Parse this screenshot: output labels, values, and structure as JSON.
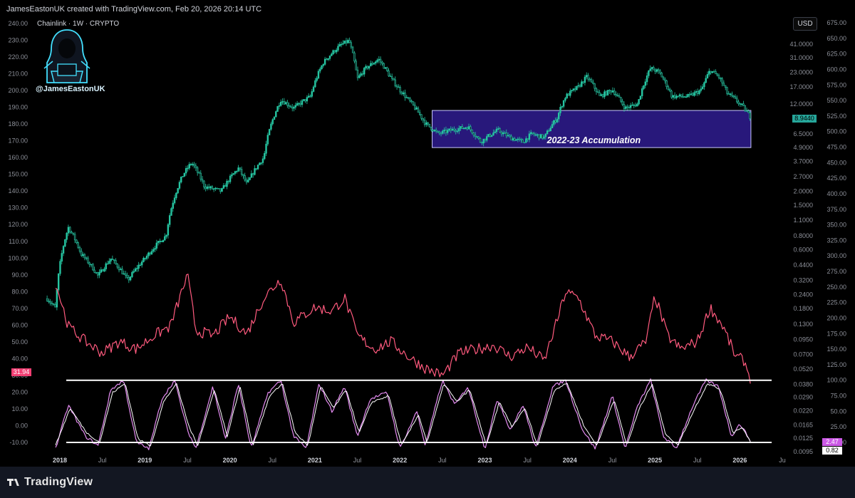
{
  "header": {
    "attribution": "JamesEastonUK created with TradingView.com, Feb 20, 2026 20:14 UTC"
  },
  "symbol": {
    "title": "Chainlink · 1W · CRYPTO"
  },
  "branding": {
    "handle": "@JamesEastonUK",
    "logo_text": "TradingView"
  },
  "currency_button": "USD",
  "colors": {
    "candle": "#26c6a2",
    "rsi": "#ff5a7e",
    "stoch_k": "#e58cf2",
    "stoch_d": "#ffffff",
    "zone_fill": "#2b1a86",
    "zone_border": "#c8c8ff",
    "price_badge": "#26a69a",
    "rsi_badge": "#f23f73",
    "stoch_badge": "#cc59e6"
  },
  "chart_data": {
    "type": "line",
    "x_axis": {
      "tick_labels": [
        "2018",
        "Jul",
        "2019",
        "Jul",
        "2020",
        "Jul",
        "2021",
        "Jul",
        "2022",
        "Jul",
        "2023",
        "Jul",
        "2024",
        "Jul",
        "2025",
        "Jul",
        "2026",
        "Ju"
      ]
    },
    "left_axis": {
      "tick_labels": [
        "240.00",
        "230.00",
        "220.00",
        "210.00",
        "200.00",
        "190.00",
        "180.00",
        "170.00",
        "160.00",
        "150.00",
        "140.00",
        "130.00",
        "120.00",
        "110.00",
        "100.00",
        "90.00",
        "80.00",
        "70.00",
        "60.00",
        "50.00",
        "40.00",
        "30.00",
        "20.00",
        "10.00",
        "0.00",
        "-10.00"
      ]
    },
    "price_axis": {
      "scale": "log",
      "tick_labels": [
        "41.0000",
        "31.0000",
        "23.0000",
        "17.0000",
        "12.0000",
        "8.9440",
        "6.5000",
        "4.9000",
        "3.7000",
        "2.7000",
        "2.0000",
        "1.5000",
        "1.1000",
        "0.8000",
        "0.6000",
        "0.4400",
        "0.3200",
        "0.2400",
        "0.1800",
        "0.1300",
        "0.0950",
        "0.0700",
        "0.0520",
        "0.0380",
        "0.0290",
        "0.0220",
        "0.0165",
        "0.0125",
        "0.0095"
      ]
    },
    "right_axis": {
      "tick_labels": [
        "675.00",
        "650.00",
        "625.00",
        "600.00",
        "575.00",
        "550.00",
        "525.00",
        "500.00",
        "475.00",
        "450.00",
        "425.00",
        "400.00",
        "375.00",
        "350.00",
        "325.00",
        "300.00",
        "275.00",
        "250.00",
        "225.00",
        "200.00",
        "175.00",
        "150.00",
        "125.00",
        "100.00",
        "75.00",
        "50.00",
        "25.00",
        "0.00"
      ]
    },
    "series": [
      {
        "type": "candlestick",
        "points": [
          [
            2017.85,
            0.22
          ],
          [
            2017.95,
            0.18
          ],
          [
            2018.1,
            0.95
          ],
          [
            2018.25,
            0.55
          ],
          [
            2018.45,
            0.35
          ],
          [
            2018.6,
            0.5
          ],
          [
            2018.8,
            0.32
          ],
          [
            2019.0,
            0.5
          ],
          [
            2019.25,
            0.8
          ],
          [
            2019.45,
            2.8
          ],
          [
            2019.55,
            3.6
          ],
          [
            2019.7,
            2.2
          ],
          [
            2019.9,
            2.0
          ],
          [
            2020.1,
            3.2
          ],
          [
            2020.2,
            2.3
          ],
          [
            2020.4,
            4.0
          ],
          [
            2020.6,
            13.0
          ],
          [
            2020.75,
            11.0
          ],
          [
            2020.95,
            14.0
          ],
          [
            2021.1,
            28.0
          ],
          [
            2021.3,
            40.0
          ],
          [
            2021.4,
            44.0
          ],
          [
            2021.5,
            20.0
          ],
          [
            2021.6,
            25.0
          ],
          [
            2021.75,
            30.0
          ],
          [
            2021.9,
            20.0
          ],
          [
            2022.0,
            16.0
          ],
          [
            2022.1,
            13.0
          ],
          [
            2022.3,
            8.0
          ],
          [
            2022.45,
            6.5
          ],
          [
            2022.6,
            7.0
          ],
          [
            2022.8,
            7.5
          ],
          [
            2022.95,
            5.5
          ],
          [
            2023.15,
            7.0
          ],
          [
            2023.3,
            6.0
          ],
          [
            2023.45,
            5.5
          ],
          [
            2023.55,
            6.5
          ],
          [
            2023.7,
            6.0
          ],
          [
            2023.85,
            9.0
          ],
          [
            2023.95,
            14.0
          ],
          [
            2024.1,
            17.0
          ],
          [
            2024.2,
            21.0
          ],
          [
            2024.35,
            14.0
          ],
          [
            2024.5,
            16.0
          ],
          [
            2024.65,
            11.0
          ],
          [
            2024.8,
            12.0
          ],
          [
            2024.95,
            25.0
          ],
          [
            2025.05,
            23.0
          ],
          [
            2025.2,
            14.0
          ],
          [
            2025.4,
            14.0
          ],
          [
            2025.55,
            16.0
          ],
          [
            2025.65,
            24.0
          ],
          [
            2025.75,
            21.0
          ],
          [
            2025.85,
            15.0
          ],
          [
            2025.95,
            13.0
          ],
          [
            2026.05,
            11.0
          ],
          [
            2026.13,
            8.944
          ]
        ]
      },
      {
        "name": "",
        "type": "line",
        "color": "#ff5a7e",
        "points": [
          [
            2017.95,
            83
          ],
          [
            2018.1,
            60
          ],
          [
            2018.3,
            52
          ],
          [
            2018.5,
            46
          ],
          [
            2018.7,
            52
          ],
          [
            2018.9,
            48
          ],
          [
            2019.1,
            55
          ],
          [
            2019.3,
            60
          ],
          [
            2019.5,
            87
          ],
          [
            2019.6,
            58
          ],
          [
            2019.8,
            55
          ],
          [
            2020.0,
            65
          ],
          [
            2020.2,
            56
          ],
          [
            2020.4,
            75
          ],
          [
            2020.6,
            85
          ],
          [
            2020.75,
            62
          ],
          [
            2021.0,
            70
          ],
          [
            2021.2,
            68
          ],
          [
            2021.35,
            75
          ],
          [
            2021.5,
            55
          ],
          [
            2021.7,
            48
          ],
          [
            2021.9,
            52
          ],
          [
            2022.1,
            44
          ],
          [
            2022.3,
            38
          ],
          [
            2022.5,
            34
          ],
          [
            2022.7,
            46
          ],
          [
            2022.9,
            48
          ],
          [
            2023.1,
            50
          ],
          [
            2023.3,
            44
          ],
          [
            2023.5,
            49
          ],
          [
            2023.7,
            42
          ],
          [
            2023.85,
            63
          ],
          [
            2023.95,
            78
          ],
          [
            2024.1,
            75
          ],
          [
            2024.3,
            55
          ],
          [
            2024.5,
            52
          ],
          [
            2024.7,
            44
          ],
          [
            2024.9,
            52
          ],
          [
            2025.0,
            76
          ],
          [
            2025.15,
            55
          ],
          [
            2025.3,
            48
          ],
          [
            2025.5,
            52
          ],
          [
            2025.65,
            70
          ],
          [
            2025.8,
            60
          ],
          [
            2025.95,
            44
          ],
          [
            2026.05,
            42
          ],
          [
            2026.13,
            31.94
          ]
        ]
      },
      {
        "name": "",
        "type": "line",
        "color": "#e58cf2",
        "points": [
          [
            2017.95,
            -10
          ],
          [
            2018.1,
            60
          ],
          [
            2018.3,
            10
          ],
          [
            2018.45,
            -5
          ],
          [
            2018.6,
            85
          ],
          [
            2018.75,
            100
          ],
          [
            2018.9,
            0
          ],
          [
            2019.05,
            -10
          ],
          [
            2019.2,
            70
          ],
          [
            2019.35,
            100
          ],
          [
            2019.5,
            20
          ],
          [
            2019.6,
            -10
          ],
          [
            2019.8,
            90
          ],
          [
            2019.95,
            5
          ],
          [
            2020.1,
            95
          ],
          [
            2020.25,
            -10
          ],
          [
            2020.45,
            80
          ],
          [
            2020.6,
            100
          ],
          [
            2020.75,
            10
          ],
          [
            2020.9,
            -10
          ],
          [
            2021.05,
            95
          ],
          [
            2021.2,
            50
          ],
          [
            2021.35,
            90
          ],
          [
            2021.5,
            10
          ],
          [
            2021.65,
            70
          ],
          [
            2021.85,
            80
          ],
          [
            2022.0,
            -10
          ],
          [
            2022.2,
            50
          ],
          [
            2022.3,
            -5
          ],
          [
            2022.5,
            100
          ],
          [
            2022.65,
            60
          ],
          [
            2022.8,
            90
          ],
          [
            2023.0,
            -10
          ],
          [
            2023.15,
            70
          ],
          [
            2023.3,
            20
          ],
          [
            2023.45,
            60
          ],
          [
            2023.6,
            -10
          ],
          [
            2023.8,
            90
          ],
          [
            2023.95,
            100
          ],
          [
            2024.15,
            20
          ],
          [
            2024.3,
            -10
          ],
          [
            2024.5,
            75
          ],
          [
            2024.65,
            -10
          ],
          [
            2024.8,
            60
          ],
          [
            2024.95,
            100
          ],
          [
            2025.1,
            10
          ],
          [
            2025.25,
            -10
          ],
          [
            2025.45,
            60
          ],
          [
            2025.6,
            100
          ],
          [
            2025.75,
            90
          ],
          [
            2025.9,
            10
          ],
          [
            2026.0,
            30
          ],
          [
            2026.13,
            2.47
          ]
        ]
      },
      {
        "name": "",
        "type": "line",
        "color": "#ffffff",
        "points": [
          [
            2017.95,
            -5
          ],
          [
            2018.12,
            55
          ],
          [
            2018.32,
            15
          ],
          [
            2018.47,
            0
          ],
          [
            2018.62,
            80
          ],
          [
            2018.77,
            95
          ],
          [
            2018.92,
            5
          ],
          [
            2019.07,
            -5
          ],
          [
            2019.22,
            65
          ],
          [
            2019.37,
            95
          ],
          [
            2019.52,
            25
          ],
          [
            2019.62,
            -5
          ],
          [
            2019.82,
            85
          ],
          [
            2019.97,
            10
          ],
          [
            2020.12,
            90
          ],
          [
            2020.27,
            -5
          ],
          [
            2020.47,
            75
          ],
          [
            2020.62,
            95
          ],
          [
            2020.77,
            15
          ],
          [
            2020.92,
            -5
          ],
          [
            2021.07,
            90
          ],
          [
            2021.22,
            55
          ],
          [
            2021.37,
            85
          ],
          [
            2021.52,
            15
          ],
          [
            2021.67,
            65
          ],
          [
            2021.87,
            75
          ],
          [
            2022.02,
            -5
          ],
          [
            2022.22,
            45
          ],
          [
            2022.32,
            0
          ],
          [
            2022.52,
            95
          ],
          [
            2022.67,
            65
          ],
          [
            2022.82,
            85
          ],
          [
            2023.02,
            -5
          ],
          [
            2023.17,
            65
          ],
          [
            2023.32,
            25
          ],
          [
            2023.47,
            55
          ],
          [
            2023.62,
            -5
          ],
          [
            2023.82,
            85
          ],
          [
            2023.97,
            95
          ],
          [
            2024.17,
            25
          ],
          [
            2024.32,
            -5
          ],
          [
            2024.52,
            70
          ],
          [
            2024.67,
            -5
          ],
          [
            2024.82,
            55
          ],
          [
            2024.97,
            95
          ],
          [
            2025.12,
            15
          ],
          [
            2025.27,
            -5
          ],
          [
            2025.47,
            55
          ],
          [
            2025.62,
            95
          ],
          [
            2025.77,
            85
          ],
          [
            2025.92,
            15
          ],
          [
            2026.02,
            25
          ],
          [
            2026.13,
            0.82
          ]
        ]
      }
    ],
    "annotations": [
      {
        "text": "2022-23 Accumulation",
        "x_range": [
          2022.38,
          2026.13
        ],
        "price_range": [
          4.9,
          10.5
        ]
      }
    ],
    "last_values": {
      "price": "8.9440",
      "rsi": "31.94",
      "stoch_k": "2.47",
      "stoch_d": "0.82"
    },
    "horizontal_lines": [
      {
        "right_axis_value": 100
      },
      {
        "right_axis_value": 0
      }
    ]
  }
}
